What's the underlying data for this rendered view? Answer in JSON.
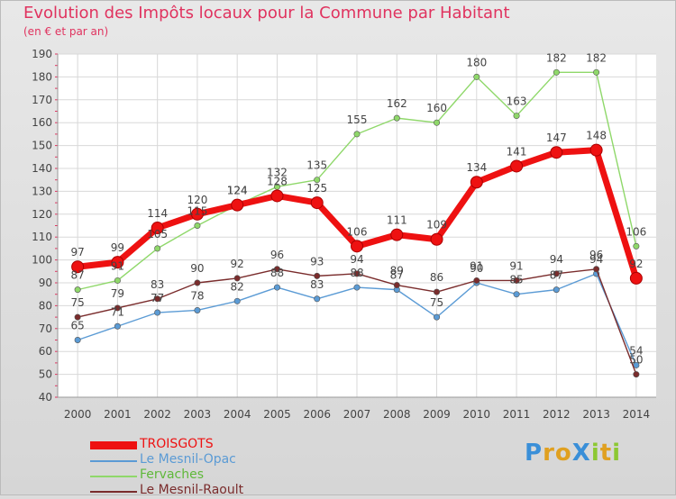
{
  "title": "Evolution des Impôts locaux pour la Commune par Habitant",
  "subtitle": "(en € et par an)",
  "logo": {
    "text": "ProXiti",
    "letters": [
      {
        "ch": "P",
        "color": "#3a8fd8"
      },
      {
        "ch": "r",
        "color": "#e0a020"
      },
      {
        "ch": "o",
        "color": "#e0a020"
      },
      {
        "ch": "X",
        "color": "#3a8fd8"
      },
      {
        "ch": "i",
        "color": "#8cc832"
      },
      {
        "ch": "t",
        "color": "#e0a020"
      },
      {
        "ch": "i",
        "color": "#8cc832"
      }
    ]
  },
  "chart_data": {
    "type": "line",
    "title": "Evolution des Impôts locaux pour la Commune par Habitant",
    "subtitle": "(en € et par an)",
    "x": [
      "2000",
      "2001",
      "2002",
      "2003",
      "2004",
      "2005",
      "2006",
      "2007",
      "2008",
      "2009",
      "2010",
      "2011",
      "2012",
      "2013",
      "2014"
    ],
    "ylim": [
      40,
      190
    ],
    "yticks": [
      40,
      50,
      60,
      70,
      80,
      90,
      100,
      110,
      120,
      130,
      140,
      150,
      160,
      170,
      180,
      190
    ],
    "grid": true,
    "legend_position": "bottom-left",
    "series": [
      {
        "name": "TROISGOTS",
        "color": "#ee1111",
        "emphasis": true,
        "values": [
          97,
          99,
          114,
          120,
          124,
          128,
          125,
          106,
          111,
          109,
          134,
          141,
          147,
          148,
          92
        ]
      },
      {
        "name": "Le Mesnil-Opac",
        "color": "#5b9bd5",
        "values": [
          65,
          71,
          77,
          78,
          82,
          88,
          83,
          88,
          87,
          75,
          90,
          85,
          87,
          94,
          54
        ]
      },
      {
        "name": "Fervaches",
        "color": "#8fd86a",
        "values": [
          87,
          91,
          105,
          115,
          124,
          132,
          135,
          155,
          162,
          160,
          180,
          163,
          182,
          182,
          106
        ]
      },
      {
        "name": "Le Mesnil-Raoult",
        "color": "#7a2c2c",
        "values": [
          75,
          79,
          83,
          90,
          92,
          96,
          93,
          94,
          89,
          86,
          91,
          91,
          94,
          96,
          50
        ]
      }
    ]
  }
}
